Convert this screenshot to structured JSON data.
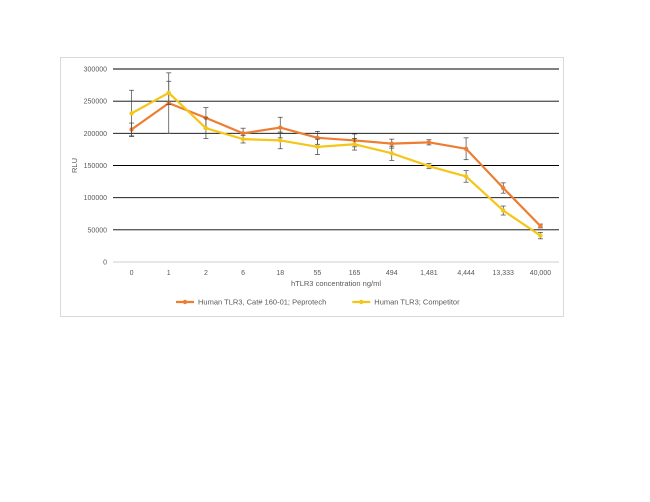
{
  "chart_data": {
    "type": "line",
    "title": "",
    "xlabel": "hTLR3 concentration ng/ml",
    "ylabel": "RLU",
    "ylim": [
      0,
      300000
    ],
    "yticks": [
      0,
      50000,
      100000,
      150000,
      200000,
      250000,
      300000
    ],
    "ytick_labels": [
      "0",
      "50000",
      "100000",
      "150000",
      "200000",
      "250000",
      "300000"
    ],
    "categories": [
      "0",
      "1",
      "2",
      "6",
      "18",
      "55",
      "165",
      "494",
      "1,481",
      "4,444",
      "13,333",
      "40,000"
    ],
    "grid": "horizontal",
    "legend_position": "bottom",
    "series": [
      {
        "name": "Human TLR3, Cat# 160-01; Peprotech",
        "color": "#ED7D31",
        "values": [
          206000,
          247000,
          224000,
          200000,
          209000,
          193000,
          189000,
          184000,
          186000,
          176000,
          115000,
          56000
        ],
        "error": [
          10000,
          47000,
          16000,
          8000,
          16000,
          10000,
          10000,
          7000,
          4000,
          17000,
          8000,
          3000
        ]
      },
      {
        "name": "Human TLR3; Competitor",
        "color": "#F5C518",
        "values": [
          231000,
          263000,
          208000,
          191000,
          189000,
          179000,
          183000,
          169000,
          149000,
          133000,
          80000,
          41000
        ],
        "error": [
          36000,
          18000,
          16000,
          6000,
          13000,
          12000,
          9000,
          11000,
          4000,
          9000,
          7000,
          5000
        ]
      }
    ]
  }
}
